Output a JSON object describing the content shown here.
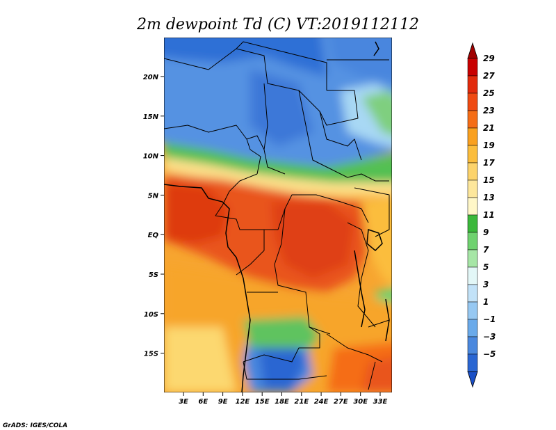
{
  "map": {
    "title": "2m dewpoint Td (C) VT:2019112112",
    "credit": "GrADS: IGES/COLA",
    "lat_ticks": [
      "20N",
      "15N",
      "10N",
      "5N",
      "EQ",
      "5S",
      "10S",
      "15S"
    ],
    "lon_ticks": [
      "3E",
      "6E",
      "9E",
      "12E",
      "15E",
      "18E",
      "21E",
      "24E",
      "27E",
      "30E",
      "33E"
    ]
  },
  "colorbar": {
    "labels": [
      "29",
      "27",
      "25",
      "23",
      "21",
      "19",
      "17",
      "15",
      "13",
      "11",
      "9",
      "7",
      "5",
      "3",
      "1",
      "−1",
      "−3",
      "−5"
    ],
    "colors": [
      "#a00000",
      "#c80000",
      "#e22a0c",
      "#ef4a12",
      "#f56d16",
      "#f9a01f",
      "#fbbd3c",
      "#fcd36b",
      "#fde79c",
      "#fff7c8",
      "#3bb83b",
      "#6fd26f",
      "#a6e6a6",
      "#e3f7f7",
      "#c2e2f8",
      "#96c8f2",
      "#6aaaea",
      "#4a88de",
      "#2a66d2",
      "#1a4fc6"
    ]
  }
}
